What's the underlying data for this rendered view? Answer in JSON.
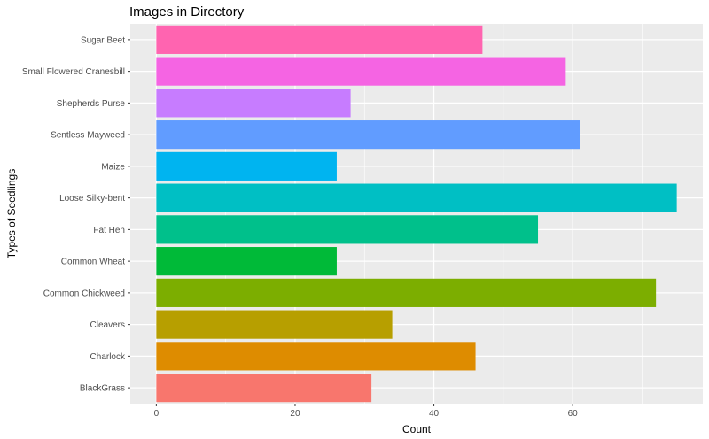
{
  "chart_data": {
    "type": "bar",
    "orientation": "horizontal",
    "title": "Images in Directory",
    "xlabel": "Count",
    "ylabel": "Types of Seedlings",
    "categories": [
      "BlackGrass",
      "Charlock",
      "Cleavers",
      "Common Chickweed",
      "Common Wheat",
      "Fat Hen",
      "Loose Silky-bent",
      "Maize",
      "Sentless Mayweed",
      "Shepherds Purse",
      "Small Flowered Cranesbill",
      "Sugar Beet"
    ],
    "values": [
      31,
      46,
      34,
      72,
      26,
      55,
      75,
      26,
      61,
      28,
      59,
      47
    ],
    "colors": [
      "#F8766D",
      "#DE8C00",
      "#B79F00",
      "#7CAE00",
      "#00BA38",
      "#00C08B",
      "#00BFC4",
      "#00B4F0",
      "#619CFF",
      "#C77CFF",
      "#F564E3",
      "#FF64B0"
    ],
    "xlim": [
      -3.75,
      78.75
    ],
    "xticks": [
      0,
      20,
      40,
      60
    ],
    "xtick_labels": [
      "0",
      "20",
      "40",
      "60"
    ],
    "grid": true,
    "legend": "none",
    "panel_background": "#EBEBEB",
    "grid_color": "#FFFFFF"
  }
}
